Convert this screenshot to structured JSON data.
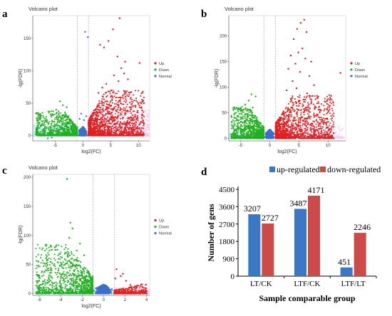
{
  "colors": {
    "up": "#e02020",
    "down": "#22b022",
    "normal": "#3a70c8",
    "halo_up": "#f8c8f4",
    "halo_down": "#bfe8f8",
    "bar_up": "#3b78c4",
    "bar_down": "#cc4a4a",
    "threshold_line": "#999999"
  },
  "chart_data": [
    {
      "id": "a",
      "type": "scatter",
      "panel_letter": "a",
      "title": "Volcano plot",
      "xlabel": "log2(FC)",
      "ylabel": "-lg(FDR)",
      "xlim": [
        -9,
        12
      ],
      "ylim": [
        -8,
        185
      ],
      "xticks": [
        -5,
        0,
        5,
        10
      ],
      "yticks": [
        0,
        50,
        100,
        150
      ],
      "thresholds_x": [
        -1,
        1
      ],
      "legend": [
        "Up",
        "Down",
        "Normal"
      ],
      "legend_position": "right",
      "series": [
        {
          "name": "Up",
          "points": [
            [
              6.6,
              181
            ],
            [
              5.4,
              164
            ],
            [
              4.6,
              146
            ],
            [
              3.8,
              136
            ],
            [
              3.1,
              140
            ],
            [
              6.2,
              122
            ],
            [
              7.6,
              114
            ],
            [
              10.2,
              112
            ],
            [
              6.9,
              104
            ],
            [
              7.4,
              96
            ],
            [
              5.6,
              93
            ],
            [
              8.1,
              87
            ],
            [
              6.4,
              84
            ],
            [
              4.2,
              80
            ],
            [
              3.5,
              74
            ],
            [
              5.1,
              70
            ],
            [
              2.8,
              66
            ],
            [
              7.2,
              62
            ],
            [
              9.2,
              18
            ],
            [
              10.6,
              12
            ],
            [
              8.4,
              44
            ]
          ]
        },
        {
          "name": "Down",
          "points": [
            [
              -4.1,
              53
            ],
            [
              -3.6,
              47
            ],
            [
              -2.9,
              44
            ],
            [
              -4.8,
              40
            ],
            [
              -3.2,
              36
            ],
            [
              -5.4,
              32
            ],
            [
              -2.6,
              30
            ],
            [
              -3.8,
              27
            ],
            [
              -4.4,
              24
            ],
            [
              -6.9,
              20
            ],
            [
              -7.8,
              12
            ],
            [
              -8.4,
              6
            ],
            [
              -5.9,
              14
            ]
          ]
        },
        {
          "name": "Normal",
          "points": [
            [
              0.4,
              160
            ],
            [
              0.9,
              152
            ],
            [
              -0.3,
              34
            ],
            [
              0.2,
              24
            ],
            [
              0.6,
              30
            ],
            [
              -0.6,
              26
            ],
            [
              -5.6,
              -3
            ],
            [
              -6.3,
              -4
            ]
          ]
        }
      ]
    },
    {
      "id": "b",
      "type": "scatter",
      "panel_letter": "b",
      "title": "Volcano plot",
      "xlabel": "log2(FC)",
      "ylabel": "-lg(FDR)",
      "xlim": [
        -7,
        13
      ],
      "ylim": [
        -5,
        240
      ],
      "xticks": [
        -5,
        0,
        5,
        10
      ],
      "yticks": [
        0,
        50,
        100,
        150,
        200
      ],
      "thresholds_x": [
        -1,
        1
      ],
      "legend": [
        "Up",
        "Down",
        "Normal"
      ],
      "legend_position": "right",
      "series": [
        {
          "name": "Up",
          "points": [
            [
              5.9,
              232
            ],
            [
              5.3,
              226
            ],
            [
              4.7,
              214
            ],
            [
              6.3,
              208
            ],
            [
              4.1,
              194
            ],
            [
              5.6,
              176
            ],
            [
              4.9,
              168
            ],
            [
              3.6,
              162
            ],
            [
              6.1,
              156
            ],
            [
              7.1,
              150
            ],
            [
              4.4,
              146
            ],
            [
              3.2,
              136
            ],
            [
              5.2,
              130
            ],
            [
              12.1,
              128
            ],
            [
              6.8,
              122
            ],
            [
              3.9,
              112
            ],
            [
              7.6,
              104
            ],
            [
              4.6,
              98
            ],
            [
              2.9,
              94
            ],
            [
              6.4,
              88
            ]
          ]
        },
        {
          "name": "Down",
          "points": [
            [
              -3.1,
              86
            ],
            [
              -2.4,
              82
            ],
            [
              -3.6,
              74
            ],
            [
              -4.2,
              66
            ],
            [
              -2.9,
              60
            ],
            [
              -3.9,
              54
            ],
            [
              -5.4,
              22
            ],
            [
              -6.1,
              12
            ],
            [
              -6.6,
              8
            ],
            [
              -4.8,
              40
            ]
          ]
        },
        {
          "name": "Normal",
          "points": [
            [
              -0.2,
              12
            ],
            [
              0.3,
              9
            ],
            [
              -0.6,
              7
            ],
            [
              0.7,
              8
            ]
          ]
        }
      ]
    },
    {
      "id": "c",
      "type": "scatter",
      "panel_letter": "c",
      "title": "Volcano plot",
      "xlabel": "log2(FC)",
      "ylabel": "-lg(FDR)",
      "xlim": [
        -6.6,
        4.3
      ],
      "ylim": [
        -3,
        205
      ],
      "xticks": [
        -6,
        -4,
        -2,
        0,
        2,
        4
      ],
      "yticks": [
        0,
        50,
        100,
        150,
        200
      ],
      "thresholds_x": [
        -1,
        1
      ],
      "legend": [
        "Up",
        "Down",
        "Normal"
      ],
      "legend_position": "right",
      "series": [
        {
          "name": "Up",
          "points": [
            [
              1.2,
              42
            ],
            [
              1.6,
              30
            ],
            [
              1.1,
              26
            ],
            [
              2.1,
              22
            ],
            [
              2.5,
              15
            ],
            [
              3.1,
              10
            ],
            [
              3.9,
              6
            ],
            [
              1.8,
              34
            ]
          ]
        },
        {
          "name": "Down",
          "points": [
            [
              -3.4,
              197
            ],
            [
              -3.1,
              122
            ],
            [
              -2.9,
              112
            ],
            [
              -3.2,
              96
            ],
            [
              -2.2,
              86
            ],
            [
              -2.5,
              74
            ],
            [
              -1.8,
              66
            ],
            [
              -2.7,
              58
            ],
            [
              -3.6,
              50
            ],
            [
              -4.2,
              40
            ],
            [
              -5.1,
              26
            ],
            [
              -6.1,
              30
            ],
            [
              -4.6,
              18
            ],
            [
              -3.9,
              32
            ]
          ]
        },
        {
          "name": "Normal",
          "points": [
            [
              -0.4,
              8
            ],
            [
              0.2,
              6
            ],
            [
              -0.9,
              5
            ],
            [
              0.6,
              4
            ]
          ]
        }
      ]
    },
    {
      "id": "d",
      "type": "bar",
      "panel_letter": "d",
      "xlabel": "Sample comparable group",
      "ylabel": "Number of gens",
      "ylim": [
        0,
        4500
      ],
      "yticks": [
        0,
        900,
        1800,
        2700,
        3600,
        4500
      ],
      "categories": [
        "LT/CK",
        "LTF/CK",
        "LTF/LT"
      ],
      "legend_position": "top",
      "series": [
        {
          "name": "up-regulated",
          "values": [
            3207,
            3487,
            451
          ]
        },
        {
          "name": "down-regulated",
          "values": [
            2727,
            4171,
            2246
          ]
        }
      ]
    }
  ]
}
